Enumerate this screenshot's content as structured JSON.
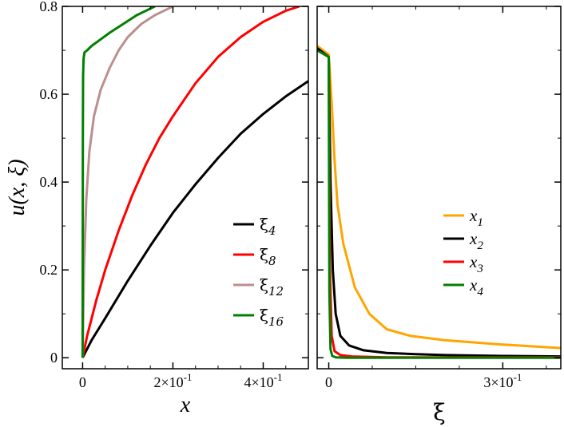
{
  "chart_data": [
    {
      "type": "line",
      "panel": "left",
      "xlabel": "x",
      "ylabel": "u(x, ξ)",
      "xlim": [
        -0.045,
        0.5
      ],
      "ylim": [
        -0.025,
        0.8
      ],
      "x_ticks": [
        {
          "value": 0,
          "label": "0"
        },
        {
          "value": 0.2,
          "label": "2×10",
          "exp": "-1"
        },
        {
          "value": 0.4,
          "label": "4×10",
          "exp": "-1"
        }
      ],
      "y_ticks": [
        {
          "value": 0,
          "label": "0"
        },
        {
          "value": 0.2,
          "label": "0.2"
        },
        {
          "value": 0.4,
          "label": "0.4"
        },
        {
          "value": 0.6,
          "label": "0.6"
        },
        {
          "value": 0.8,
          "label": "0.8"
        }
      ],
      "legend_position": "lower-right",
      "series": [
        {
          "name": "ξ",
          "sub": "4",
          "color": "#000000",
          "x": [
            0,
            0.02,
            0.05,
            0.1,
            0.15,
            0.2,
            0.25,
            0.3,
            0.35,
            0.4,
            0.45,
            0.5
          ],
          "y": [
            0,
            0.04,
            0.09,
            0.175,
            0.255,
            0.33,
            0.395,
            0.455,
            0.51,
            0.555,
            0.595,
            0.63
          ]
        },
        {
          "name": "ξ",
          "sub": "8",
          "color": "#ff0000",
          "x": [
            0,
            0.01,
            0.03,
            0.05,
            0.08,
            0.11,
            0.14,
            0.17,
            0.2,
            0.25,
            0.3,
            0.35,
            0.4,
            0.45,
            0.48
          ],
          "y": [
            0,
            0.05,
            0.13,
            0.2,
            0.29,
            0.37,
            0.44,
            0.5,
            0.55,
            0.625,
            0.685,
            0.73,
            0.765,
            0.79,
            0.8
          ]
        },
        {
          "name": "ξ",
          "sub": "12",
          "color": "#bc8f8f",
          "x": [
            0,
            0.003,
            0.008,
            0.015,
            0.025,
            0.04,
            0.06,
            0.08,
            0.1,
            0.13,
            0.16,
            0.19,
            0.2
          ],
          "y": [
            0,
            0.2,
            0.36,
            0.47,
            0.55,
            0.61,
            0.66,
            0.7,
            0.73,
            0.76,
            0.78,
            0.795,
            0.8
          ]
        },
        {
          "name": "ξ",
          "sub": "16",
          "color": "#008000",
          "x": [
            0,
            0.0005,
            0.001,
            0.002,
            0.004,
            0.01,
            0.02,
            0.04,
            0.06,
            0.09,
            0.12,
            0.15,
            0.16
          ],
          "y": [
            0,
            0.5,
            0.64,
            0.68,
            0.695,
            0.7,
            0.71,
            0.725,
            0.74,
            0.76,
            0.78,
            0.795,
            0.8
          ]
        }
      ]
    },
    {
      "type": "line",
      "panel": "right",
      "xlabel": "ξ",
      "xlim": [
        -0.02,
        0.4
      ],
      "ylim": [
        -0.025,
        0.8
      ],
      "x_ticks": [
        {
          "value": 0,
          "label": "0"
        },
        {
          "value": 0.3,
          "label": "3×10",
          "exp": "-1"
        }
      ],
      "legend_position": "center-right",
      "series": [
        {
          "name": "x",
          "sub": "1",
          "color": "#ffa500",
          "x": [
            -0.02,
            0,
            0.005,
            0.01,
            0.015,
            0.025,
            0.045,
            0.07,
            0.1,
            0.14,
            0.2,
            0.3,
            0.4
          ],
          "y": [
            0.71,
            0.69,
            0.58,
            0.45,
            0.35,
            0.26,
            0.16,
            0.1,
            0.065,
            0.05,
            0.04,
            0.03,
            0.022
          ]
        },
        {
          "name": "x",
          "sub": "2",
          "color": "#000000",
          "x": [
            -0.02,
            0,
            0.003,
            0.007,
            0.012,
            0.02,
            0.035,
            0.06,
            0.1,
            0.15,
            0.2,
            0.3,
            0.4
          ],
          "y": [
            0.705,
            0.685,
            0.4,
            0.2,
            0.1,
            0.05,
            0.028,
            0.017,
            0.011,
            0.008,
            0.006,
            0.004,
            0.003
          ]
        },
        {
          "name": "x",
          "sub": "3",
          "color": "#ff0000",
          "x": [
            -0.02,
            0,
            0.002,
            0.005,
            0.01,
            0.02,
            0.04,
            0.1,
            0.2,
            0.4
          ],
          "y": [
            0.7,
            0.685,
            0.2,
            0.05,
            0.015,
            0.006,
            0.003,
            0.001,
            0.001,
            0.001
          ]
        },
        {
          "name": "x",
          "sub": "4",
          "color": "#008000",
          "x": [
            -0.02,
            0,
            0.001,
            0.003,
            0.006,
            0.012,
            0.03,
            0.1,
            0.4
          ],
          "y": [
            0.7,
            0.685,
            0.15,
            0.02,
            0.004,
            0.001,
            0,
            0,
            0
          ]
        }
      ]
    }
  ]
}
